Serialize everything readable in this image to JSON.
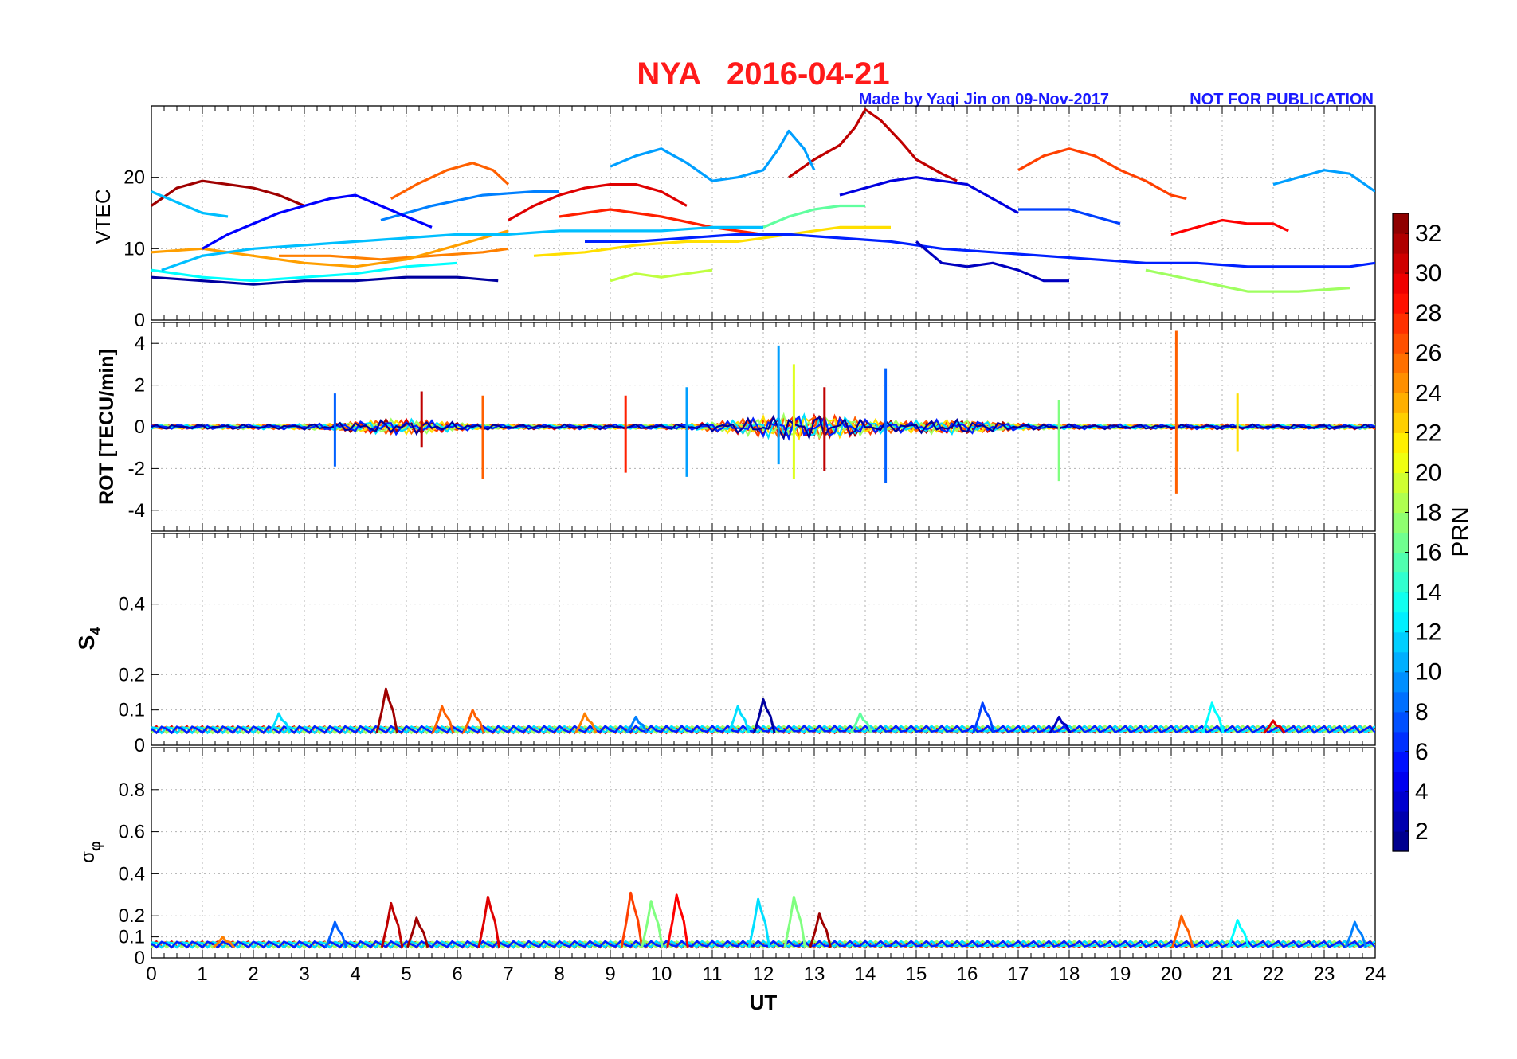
{
  "chart_data": [
    {
      "type": "line",
      "title": "NYA   2016-04-21",
      "credit": "Made by Yaqi Jin on 09-Nov-2017",
      "notice": "NOT FOR PUBLICATION",
      "title_color": "#ff1a1a",
      "credit_color": "#1a1aff",
      "ylabel": "VTEC",
      "xlim": [
        0,
        24
      ],
      "ylim": [
        0,
        30
      ],
      "yticks": [
        0,
        10,
        20
      ],
      "grid": true,
      "series": [
        {
          "prn": 32,
          "x": [
            0,
            0.5,
            1,
            1.5,
            2,
            2.5,
            3
          ],
          "values": [
            16,
            18.5,
            19.5,
            19,
            18.5,
            17.5,
            16
          ]
        },
        {
          "prn": 31,
          "x": [
            12.5,
            13,
            13.5,
            13.8,
            14,
            14.3,
            14.7,
            15,
            15.5,
            15.8
          ],
          "values": [
            20,
            22.5,
            24.5,
            27,
            29.5,
            28,
            25,
            22.5,
            20.5,
            19.5
          ]
        },
        {
          "prn": 30,
          "x": [
            7,
            7.5,
            8,
            8.5,
            9,
            9.5,
            10,
            10.5
          ],
          "values": [
            14,
            16,
            17.5,
            18.5,
            19,
            19,
            18,
            16
          ]
        },
        {
          "prn": 29,
          "x": [
            20,
            20.5,
            21,
            21.5,
            22,
            22.3
          ],
          "values": [
            12,
            13,
            14,
            13.5,
            13.5,
            12.5
          ]
        },
        {
          "prn": 28,
          "x": [
            8,
            9,
            10,
            11,
            12
          ],
          "values": [
            14.5,
            15.5,
            14.5,
            13,
            12
          ]
        },
        {
          "prn": 27,
          "x": [
            17,
            17.5,
            18,
            18.5,
            19,
            19.5,
            20,
            20.3
          ],
          "values": [
            21,
            23,
            24,
            23,
            21,
            19.5,
            17.5,
            17
          ]
        },
        {
          "prn": 26,
          "x": [
            4.7,
            5.2,
            5.8,
            6.3,
            6.7,
            7
          ],
          "values": [
            17,
            19,
            21,
            22,
            21,
            19
          ]
        },
        {
          "prn": 25,
          "x": [
            2.5,
            3.5,
            4.5,
            5.5,
            6.5,
            7
          ],
          "values": [
            9,
            9,
            8.5,
            9,
            9.5,
            10
          ]
        },
        {
          "prn": 24,
          "x": [
            0,
            1,
            2,
            3,
            4,
            5,
            6,
            7
          ],
          "values": [
            9.5,
            10,
            9,
            8,
            7.5,
            8.5,
            10.5,
            12.5
          ]
        },
        {
          "prn": 22,
          "x": [
            7.5,
            8.5,
            9.5,
            10.5,
            11.5,
            12.5,
            13.5,
            14.5
          ],
          "values": [
            9,
            9.5,
            10.5,
            11,
            11,
            12,
            13,
            13
          ]
        },
        {
          "prn": 19,
          "x": [
            9,
            9.5,
            10,
            10.5,
            11
          ],
          "values": [
            5.5,
            6.5,
            6,
            6.5,
            7
          ]
        },
        {
          "prn": 18,
          "x": [
            19.5,
            20.5,
            21.5,
            22.5,
            23.5
          ],
          "values": [
            7,
            5.5,
            4,
            4,
            4.5
          ]
        },
        {
          "prn": 16,
          "x": [
            12,
            12.5,
            13,
            13.5,
            14
          ],
          "values": [
            13,
            14.5,
            15.5,
            16,
            16
          ]
        },
        {
          "prn": 13,
          "x": [
            0,
            1,
            2,
            3,
            4,
            5,
            6
          ],
          "values": [
            7,
            6,
            5.5,
            6,
            6.5,
            7.5,
            8
          ]
        },
        {
          "prn": 11,
          "x": [
            0.2,
            1,
            2,
            3,
            4,
            5,
            6,
            7,
            8,
            9,
            10,
            11,
            12
          ],
          "values": [
            7,
            9,
            10,
            10.5,
            11,
            11.5,
            12,
            12,
            12.5,
            12.5,
            12.5,
            13,
            13
          ]
        },
        {
          "prn": 11,
          "x": [
            0,
            0.5,
            1,
            1.5
          ],
          "values": [
            18,
            16.5,
            15,
            14.5
          ]
        },
        {
          "prn": 10,
          "x": [
            9,
            9.5,
            10,
            10.5,
            11,
            11.5,
            12,
            12.3,
            12.5,
            12.8,
            13
          ],
          "values": [
            21.5,
            23,
            24,
            22,
            19.5,
            20,
            21,
            24,
            26.5,
            24,
            21
          ]
        },
        {
          "prn": 10,
          "x": [
            22,
            22.5,
            23,
            23.5,
            24
          ],
          "values": [
            19,
            20,
            21,
            20.5,
            18
          ]
        },
        {
          "prn": 9,
          "x": [
            4.5,
            5.5,
            6.5,
            7.5,
            8
          ],
          "values": [
            14,
            16,
            17.5,
            18,
            18
          ]
        },
        {
          "prn": 7,
          "x": [
            17,
            18,
            19
          ],
          "values": [
            15.5,
            15.5,
            13.5
          ]
        },
        {
          "prn": 6,
          "x": [
            8.5,
            9.5,
            10.5,
            11.5,
            12.5,
            13.5,
            14.5,
            15.5,
            16.5,
            17.5,
            18.5,
            19.5,
            20.5,
            21.5,
            22.5,
            23.5,
            24
          ],
          "values": [
            11,
            11,
            11.5,
            12,
            12,
            11.5,
            11,
            10,
            9.5,
            9,
            8.5,
            8,
            8,
            7.5,
            7.5,
            7.5,
            8
          ]
        },
        {
          "prn": 5,
          "x": [
            1,
            1.5,
            2,
            2.5,
            3,
            3.5,
            4,
            4.5,
            5,
            5.5
          ],
          "values": [
            10,
            12,
            13.5,
            15,
            16,
            17,
            17.5,
            16,
            14.5,
            13
          ]
        },
        {
          "prn": 4,
          "x": [
            13.5,
            14,
            14.5,
            15,
            15.5,
            16,
            16.5,
            17
          ],
          "values": [
            17.5,
            18.5,
            19.5,
            20,
            19.5,
            19,
            17,
            15
          ]
        },
        {
          "prn": 3,
          "x": [
            15,
            15.5,
            16,
            16.5,
            17,
            17.5,
            18
          ],
          "values": [
            11,
            8,
            7.5,
            8,
            7,
            5.5,
            5.5
          ]
        },
        {
          "prn": 2,
          "x": [
            0,
            1,
            2,
            3,
            4,
            5,
            6,
            6.8
          ],
          "values": [
            6,
            5.5,
            5,
            5.5,
            5.5,
            6,
            6,
            5.5
          ]
        }
      ]
    },
    {
      "type": "line",
      "ylabel": "ROT [TECU/min]",
      "xlim": [
        0,
        24
      ],
      "ylim": [
        -5,
        5
      ],
      "yticks": [
        -4,
        -2,
        0,
        2,
        4
      ],
      "grid": true,
      "spikes": [
        {
          "prn": 8,
          "x": 3.6,
          "values": [
            1.6,
            -1.9
          ]
        },
        {
          "prn": 31,
          "x": 5.3,
          "values": [
            1.7,
            -1.0
          ]
        },
        {
          "prn": 26,
          "x": 6.5,
          "values": [
            1.5,
            -2.5
          ]
        },
        {
          "prn": 28,
          "x": 9.3,
          "values": [
            1.5,
            -2.2
          ]
        },
        {
          "prn": 10,
          "x": 10.5,
          "values": [
            1.9,
            -2.4
          ]
        },
        {
          "prn": 10,
          "x": 12.3,
          "values": [
            3.9,
            -1.8
          ]
        },
        {
          "prn": 20,
          "x": 12.6,
          "values": [
            3.0,
            -2.5
          ]
        },
        {
          "prn": 31,
          "x": 13.2,
          "values": [
            1.9,
            -2.1
          ]
        },
        {
          "prn": 8,
          "x": 14.4,
          "values": [
            2.8,
            -2.7
          ]
        },
        {
          "prn": 17,
          "x": 17.8,
          "values": [
            1.3,
            -2.6
          ]
        },
        {
          "prn": 26,
          "x": 20.1,
          "values": [
            4.6,
            -3.2
          ]
        },
        {
          "prn": 22,
          "x": 21.3,
          "values": [
            1.6,
            -1.2
          ]
        }
      ]
    },
    {
      "type": "line",
      "ylabel": "S",
      "ylabel_sub": "4",
      "xlim": [
        0,
        24
      ],
      "ylim": [
        0,
        0.6
      ],
      "yticks": [
        0,
        0.1,
        0.2,
        0.4
      ],
      "grid": true,
      "peaks": [
        {
          "prn": 12,
          "x": 2.5,
          "value": 0.09
        },
        {
          "prn": 32,
          "x": 4.6,
          "value": 0.16
        },
        {
          "prn": 26,
          "x": 5.7,
          "value": 0.11
        },
        {
          "prn": 26,
          "x": 6.3,
          "value": 0.1
        },
        {
          "prn": 25,
          "x": 8.5,
          "value": 0.09
        },
        {
          "prn": 9,
          "x": 9.5,
          "value": 0.08
        },
        {
          "prn": 12,
          "x": 11.5,
          "value": 0.11
        },
        {
          "prn": 2,
          "x": 12.0,
          "value": 0.13
        },
        {
          "prn": 16,
          "x": 13.9,
          "value": 0.09
        },
        {
          "prn": 7,
          "x": 16.3,
          "value": 0.12
        },
        {
          "prn": 3,
          "x": 17.8,
          "value": 0.08
        },
        {
          "prn": 13,
          "x": 20.8,
          "value": 0.12
        },
        {
          "prn": 30,
          "x": 22.0,
          "value": 0.07
        }
      ]
    },
    {
      "type": "line",
      "ylabel": "σ",
      "ylabel_sub": "φ",
      "xlabel": "UT",
      "xlim": [
        0,
        24
      ],
      "xticks": [
        0,
        1,
        2,
        3,
        4,
        5,
        6,
        7,
        8,
        9,
        10,
        11,
        12,
        13,
        14,
        15,
        16,
        17,
        18,
        19,
        20,
        21,
        22,
        23,
        24
      ],
      "ylim": [
        0,
        1
      ],
      "yticks": [
        0,
        0.1,
        0.2,
        0.4,
        0.6,
        0.8
      ],
      "grid": true,
      "peaks": [
        {
          "prn": 25,
          "x": 1.4,
          "value": 0.1
        },
        {
          "prn": 8,
          "x": 3.6,
          "value": 0.17
        },
        {
          "prn": 31,
          "x": 4.7,
          "value": 0.26
        },
        {
          "prn": 32,
          "x": 5.2,
          "value": 0.19
        },
        {
          "prn": 30,
          "x": 6.6,
          "value": 0.29
        },
        {
          "prn": 27,
          "x": 9.4,
          "value": 0.31
        },
        {
          "prn": 17,
          "x": 9.8,
          "value": 0.27
        },
        {
          "prn": 29,
          "x": 10.3,
          "value": 0.3
        },
        {
          "prn": 12,
          "x": 11.9,
          "value": 0.28
        },
        {
          "prn": 17,
          "x": 12.6,
          "value": 0.29
        },
        {
          "prn": 32,
          "x": 13.1,
          "value": 0.21
        },
        {
          "prn": 26,
          "x": 20.2,
          "value": 0.2
        },
        {
          "prn": 13,
          "x": 21.3,
          "value": 0.18
        },
        {
          "prn": 9,
          "x": 23.6,
          "value": 0.17
        }
      ]
    },
    {
      "type": "heatmap",
      "role": "colorbar",
      "label": "PRN",
      "range": [
        1,
        33
      ],
      "ticks": [
        2,
        4,
        6,
        8,
        10,
        12,
        14,
        16,
        18,
        20,
        22,
        24,
        26,
        28,
        30,
        32
      ],
      "colormap": "jet"
    }
  ]
}
